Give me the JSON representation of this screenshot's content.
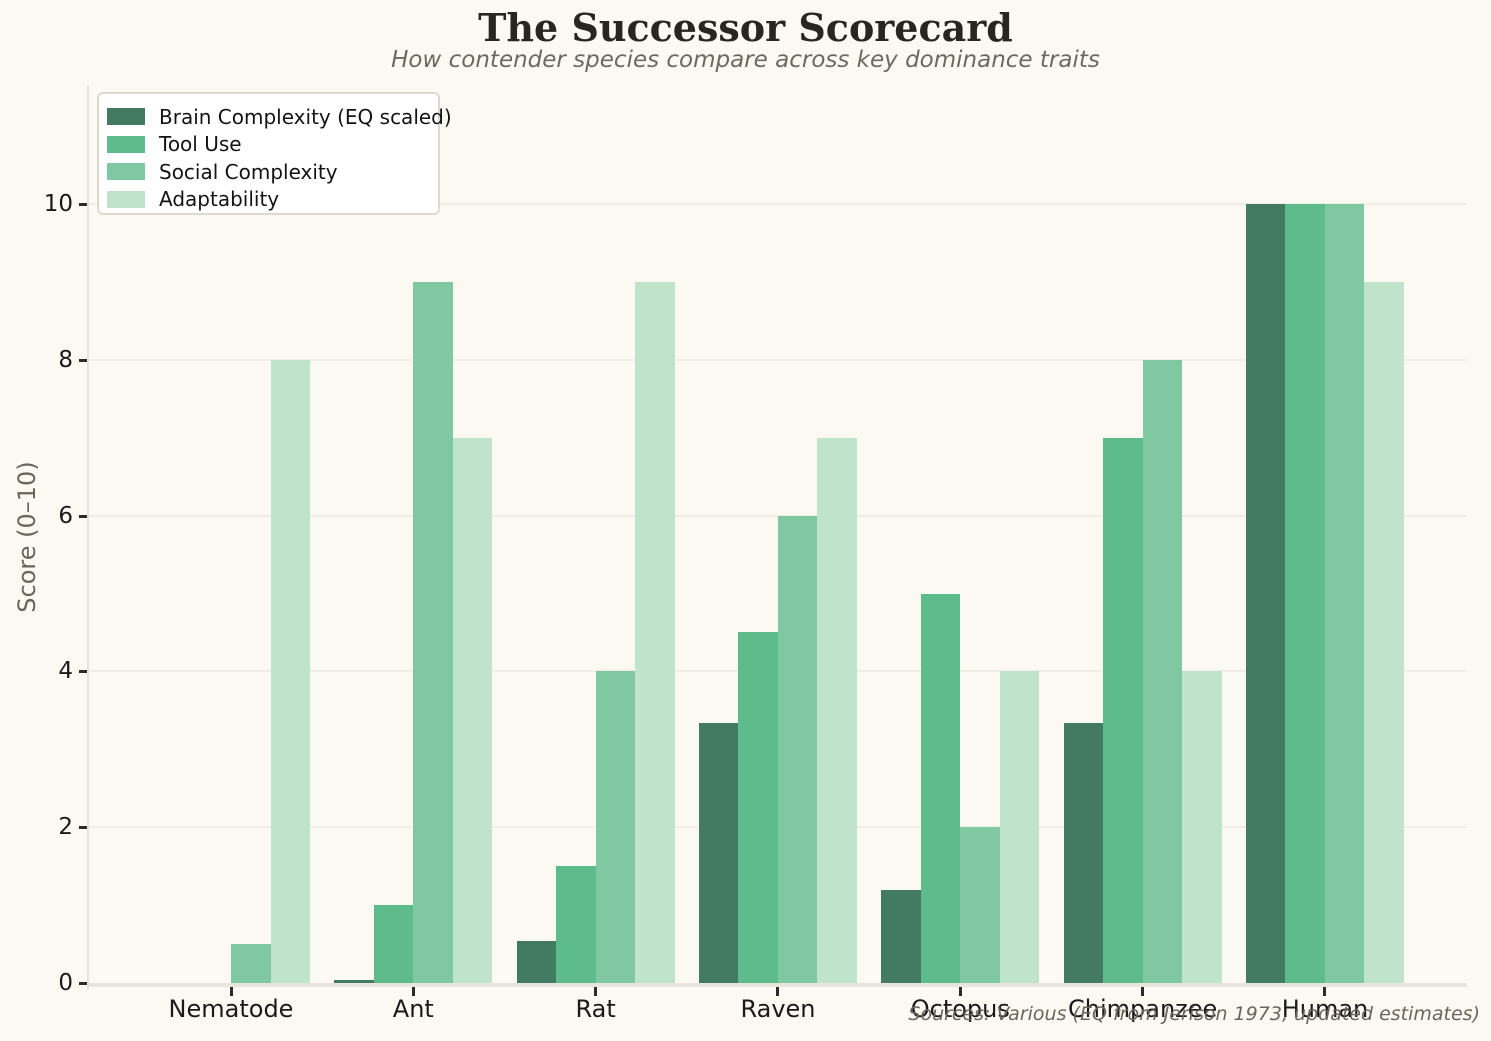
{
  "chart_data": {
    "type": "bar",
    "title": "The Successor Scorecard",
    "subtitle": "How contender species compare across key dominance traits",
    "ylabel": "Score (0–10)",
    "source_note": "Sources: Various (EQ from Jerison 1973, updated estimates)",
    "categories": [
      "Nematode",
      "Ant",
      "Rat",
      "Raven",
      "Octopus",
      "Chimpanzee",
      "Human"
    ],
    "series": [
      {
        "name": "Brain Complexity (EQ scaled)",
        "color": "#437a62",
        "values": [
          0,
          0.04,
          0.54,
          3.34,
          1.2,
          3.34,
          10
        ]
      },
      {
        "name": "Tool Use",
        "color": "#5ebc8c",
        "values": [
          0,
          1,
          1.5,
          4.5,
          5,
          7,
          10
        ]
      },
      {
        "name": "Social Complexity",
        "color": "#7fc8a2",
        "values": [
          0.5,
          9,
          4,
          6,
          2,
          8,
          10
        ]
      },
      {
        "name": "Adaptability",
        "color": "#c0e4cb",
        "values": [
          8,
          7,
          9,
          7,
          4,
          4,
          9
        ]
      }
    ],
    "yticks": [
      0,
      2,
      4,
      6,
      8,
      10
    ],
    "ylim": [
      0,
      11.5
    ],
    "grid": true,
    "legend_position": "upper left",
    "background_color": "#fbf9f2",
    "gridline_color": "#f1eee5",
    "axis_color": "#e8e5dc"
  }
}
